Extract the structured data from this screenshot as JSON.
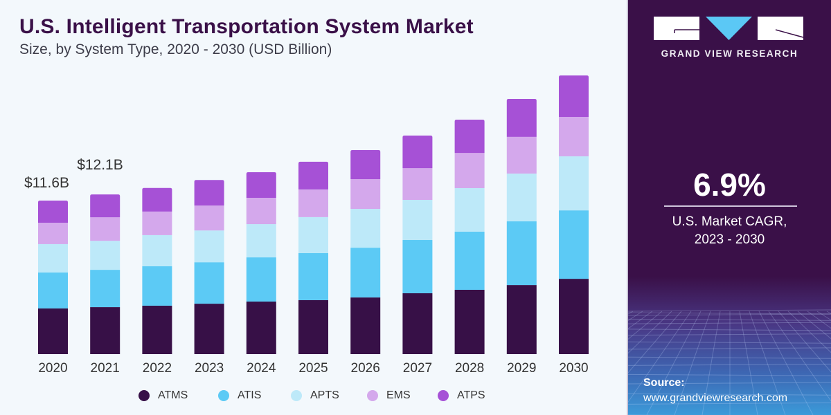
{
  "header": {
    "title": "U.S. Intelligent Transportation System Market",
    "subtitle": "Size, by System Type, 2020 - 2030 (USD Billion)"
  },
  "panel": {
    "brand": "GRAND VIEW RESEARCH",
    "cagr_value": "6.9%",
    "cagr_label_line1": "U.S. Market CAGR,",
    "cagr_label_line2": "2023 - 2030",
    "source_heading": "Source:",
    "source_url": "www.grandviewresearch.com",
    "colors": {
      "background": "#3a1048",
      "logo_accent": "#5bc8f5"
    }
  },
  "chart_data": {
    "type": "bar",
    "stacked": true,
    "title": "U.S. Intelligent Transportation System Market",
    "subtitle": "Size, by System Type, 2020 - 2030 (USD Billion)",
    "xlabel": "",
    "ylabel": "",
    "categories": [
      "2020",
      "2021",
      "2022",
      "2023",
      "2024",
      "2025",
      "2026",
      "2027",
      "2028",
      "2029",
      "2030"
    ],
    "ylim": [
      0,
      22
    ],
    "grid": false,
    "legend_position": "bottom",
    "series": [
      {
        "name": "ATMS",
        "color": "#371047",
        "values": [
          3.45,
          3.55,
          3.66,
          3.81,
          3.97,
          4.08,
          4.28,
          4.6,
          4.86,
          5.22,
          5.69
        ]
      },
      {
        "name": "ATIS",
        "color": "#5ccaf5",
        "values": [
          2.72,
          2.82,
          2.98,
          3.13,
          3.34,
          3.55,
          3.76,
          4.02,
          4.39,
          4.81,
          5.17
        ]
      },
      {
        "name": "APTS",
        "color": "#bde9f9",
        "values": [
          2.14,
          2.19,
          2.35,
          2.4,
          2.51,
          2.72,
          2.93,
          3.03,
          3.29,
          3.61,
          4.08
        ]
      },
      {
        "name": "EMS",
        "color": "#d4a8ec",
        "values": [
          1.62,
          1.78,
          1.78,
          1.88,
          1.99,
          2.09,
          2.25,
          2.4,
          2.66,
          2.77,
          2.98
        ]
      },
      {
        "name": "ATPS",
        "color": "#a651d6",
        "values": [
          1.67,
          1.72,
          1.78,
          1.93,
          1.93,
          2.09,
          2.19,
          2.46,
          2.51,
          2.87,
          3.13
        ]
      }
    ],
    "annotations": [
      {
        "category": "2020",
        "text": "$11.6B"
      },
      {
        "category": "2021",
        "text": "$12.1B"
      }
    ]
  }
}
